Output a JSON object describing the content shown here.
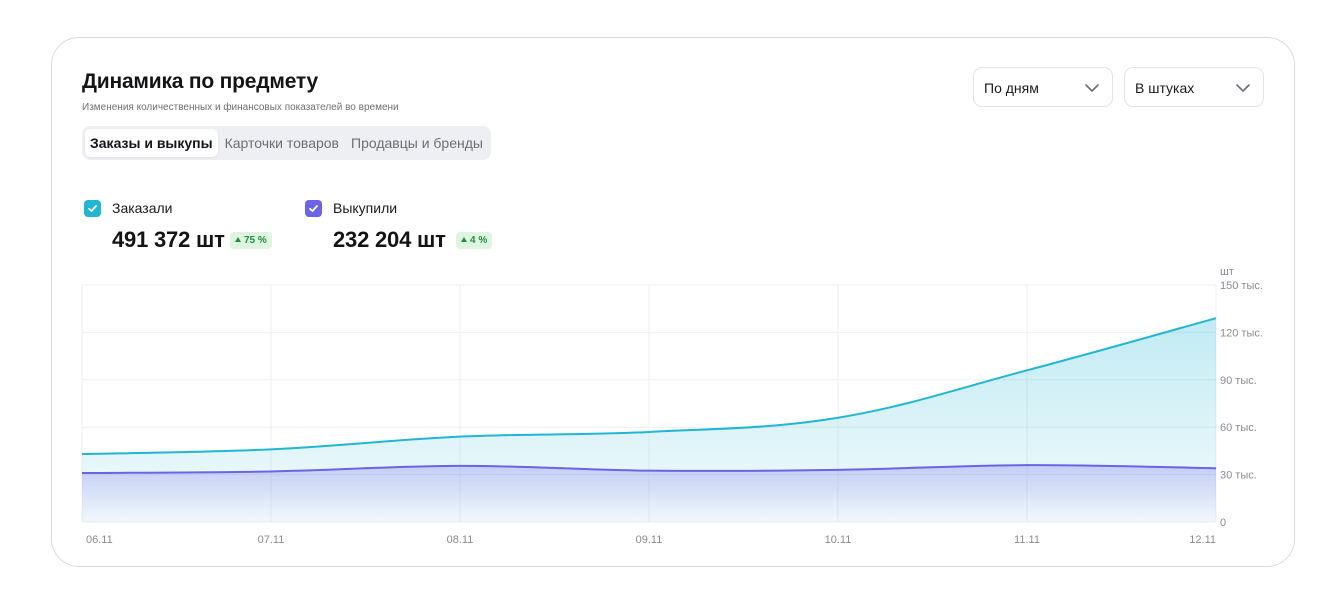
{
  "header": {
    "title": "Динамика по предмету",
    "subtitle": "Изменения количественных и финансовых показателей во времени"
  },
  "tabs": [
    {
      "label": "Заказы и выкупы",
      "active": true
    },
    {
      "label": "Карточки товаров",
      "active": false
    },
    {
      "label": "Продавцы и бренды",
      "active": false
    }
  ],
  "controls": {
    "period": "По дням",
    "units": "В штуках"
  },
  "legend": [
    {
      "label": "Заказали",
      "value": "491 372 шт",
      "change": "75 %",
      "color": "#21b6d4"
    },
    {
      "label": "Выкупили",
      "value": "232 204 шт",
      "change": "4 %",
      "color": "#6c63e6"
    }
  ],
  "chart_data": {
    "type": "area",
    "x": [
      "06.11",
      "07.11",
      "08.11",
      "09.11",
      "10.11",
      "11.11",
      "12.11"
    ],
    "series": [
      {
        "name": "Заказали",
        "color": "#21b6d4",
        "values": [
          43000,
          46000,
          54000,
          57000,
          66000,
          96000,
          129000
        ]
      },
      {
        "name": "Выкупили",
        "color": "#6c63e6",
        "values": [
          31000,
          32000,
          35500,
          32500,
          33000,
          36000,
          34000
        ]
      }
    ],
    "y_unit": "шт",
    "y_ticks": [
      "0",
      "30 тыс.",
      "60 тыс.",
      "90 тыс.",
      "120 тыс.",
      "150 тыс."
    ],
    "ylim": [
      0,
      150000
    ],
    "grid": true,
    "y_axis_side": "right"
  }
}
